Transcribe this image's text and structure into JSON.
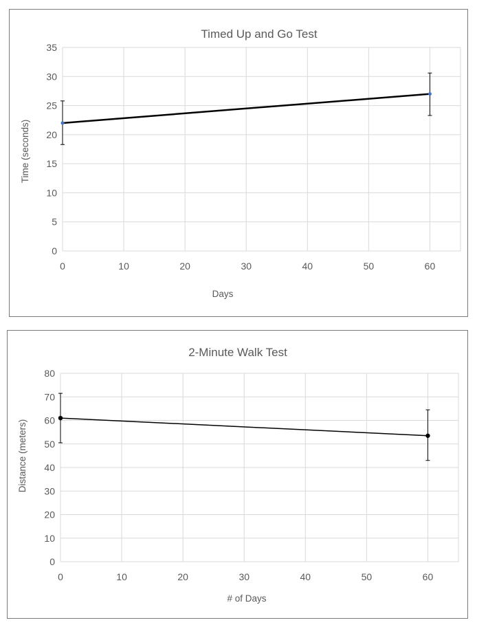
{
  "charts": [
    {
      "id": "tug",
      "chart_data": {
        "type": "line",
        "title": "Timed Up and Go Test",
        "xlabel": "Days",
        "ylabel": "Time (seconds)",
        "xlim": [
          0,
          65
        ],
        "ylim": [
          0,
          35
        ],
        "xticks": [
          0,
          10,
          20,
          30,
          40,
          50,
          60
        ],
        "yticks": [
          0,
          5,
          10,
          15,
          20,
          25,
          30,
          35
        ],
        "grid": true,
        "legend": "none",
        "series": [
          {
            "color": "#000000",
            "marker_color": "#4472c4",
            "points": [
              {
                "x": 0,
                "y": 22.0,
                "err_low": 18.3,
                "err_high": 25.8
              },
              {
                "x": 60,
                "y": 27.0,
                "err_low": 23.3,
                "err_high": 30.6
              }
            ]
          }
        ]
      }
    },
    {
      "id": "walk",
      "chart_data": {
        "type": "line",
        "title": "2-Minute Walk Test",
        "xlabel": "# of Days",
        "ylabel": "Distance (meters)",
        "xlim": [
          0,
          65
        ],
        "ylim": [
          0,
          80
        ],
        "xticks": [
          0,
          10,
          20,
          30,
          40,
          50,
          60
        ],
        "yticks": [
          0,
          10,
          20,
          30,
          40,
          50,
          60,
          70,
          80
        ],
        "grid": true,
        "legend": "none",
        "series": [
          {
            "color": "#000000",
            "marker_color": "#000000",
            "points": [
              {
                "x": 0,
                "y": 61.0,
                "err_low": 50.5,
                "err_high": 71.5
              },
              {
                "x": 60,
                "y": 53.5,
                "err_low": 43.0,
                "err_high": 64.5
              }
            ]
          }
        ]
      }
    }
  ]
}
